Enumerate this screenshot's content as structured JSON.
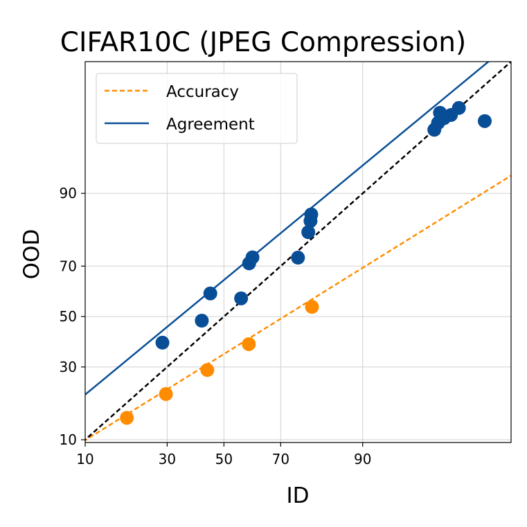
{
  "chart_data": {
    "type": "scatter",
    "title": "CIFAR10C (JPEG Compression)",
    "xlabel": "ID",
    "ylabel": "OOD",
    "x_ticks": [
      10,
      30,
      50,
      70,
      90
    ],
    "y_ticks": [
      10,
      30,
      50,
      70,
      90
    ],
    "scale": "probit",
    "xlim": [
      10,
      99.6
    ],
    "ylim": [
      9.5,
      99.6
    ],
    "grid": true,
    "legend_position": "top-left",
    "colors": {
      "accuracy": "#ff8c00",
      "agreement": "#084e96",
      "reference": "#000000"
    },
    "series": [
      {
        "name": "Accuracy",
        "line_style": "dashed",
        "points": [
          [
            18.5,
            14.6
          ],
          [
            29.6,
            21.0
          ],
          [
            43.9,
            28.9
          ],
          [
            59.1,
            38.7
          ],
          [
            79.2,
            54.0
          ]
        ],
        "fit": {
          "slope": 0.7,
          "intercept": -0.39
        }
      },
      {
        "name": "Agreement",
        "line_style": "solid",
        "points": [
          [
            28.5,
            39.3
          ],
          [
            41.9,
            48.3
          ],
          [
            45.0,
            59.5
          ],
          [
            56.3,
            57.5
          ],
          [
            59.2,
            71.0
          ],
          [
            60.4,
            73.1
          ],
          [
            75.3,
            73.0
          ],
          [
            78.2,
            81.0
          ],
          [
            78.8,
            84.0
          ],
          [
            79.0,
            85.6
          ],
          [
            97.4,
            97.4
          ],
          [
            97.6,
            97.8
          ],
          [
            97.7,
            98.3
          ],
          [
            97.9,
            98.05
          ],
          [
            98.2,
            98.2
          ],
          [
            98.5,
            98.5
          ],
          [
            99.2,
            97.9
          ]
        ],
        "fit": {
          "slope": 0.93,
          "intercept": 0.38
        }
      }
    ],
    "reference_line": {
      "style": "dashed",
      "slope": 1,
      "intercept": 0
    }
  }
}
